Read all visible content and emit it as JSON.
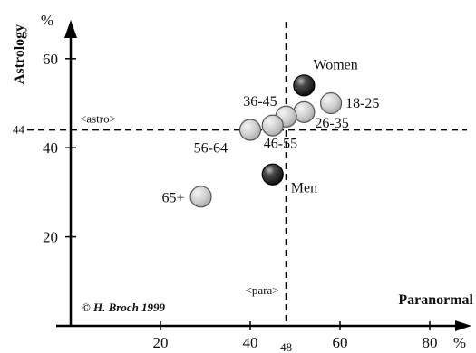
{
  "chart_data": {
    "type": "scatter",
    "xlabel": "Paranormal",
    "ylabel": "Astrology",
    "x_unit": "%",
    "y_unit": "%",
    "x_ticks": [
      20,
      40,
      60,
      80
    ],
    "y_ticks": [
      20,
      40,
      60
    ],
    "xlim": [
      0,
      88
    ],
    "ylim": [
      0,
      68
    ],
    "reference_lines": [
      {
        "axis": "x",
        "value": 48,
        "value_label": "48",
        "name": "<para>"
      },
      {
        "axis": "y",
        "value": 44,
        "value_label": "44",
        "name": "<astro>"
      }
    ],
    "points": [
      {
        "label": "Women",
        "x": 52,
        "y": 54,
        "style": "dark"
      },
      {
        "label": "18-25",
        "x": 58,
        "y": 50,
        "style": "light"
      },
      {
        "label": "26-35",
        "x": 52,
        "y": 48,
        "style": "light"
      },
      {
        "label": "36-45",
        "x": 48,
        "y": 47,
        "style": "light"
      },
      {
        "label": "46-55",
        "x": 45,
        "y": 45,
        "style": "light"
      },
      {
        "label": "56-64",
        "x": 40,
        "y": 44,
        "style": "light"
      },
      {
        "label": "Men",
        "x": 45,
        "y": 34,
        "style": "dark"
      },
      {
        "label": "65+",
        "x": 29,
        "y": 29,
        "style": "light"
      }
    ],
    "colors": {
      "light_marker": "#c8c8c8",
      "dark_marker": "#2a2a2a",
      "axis": "#000000"
    }
  },
  "credit": "© H. Broch 1999"
}
